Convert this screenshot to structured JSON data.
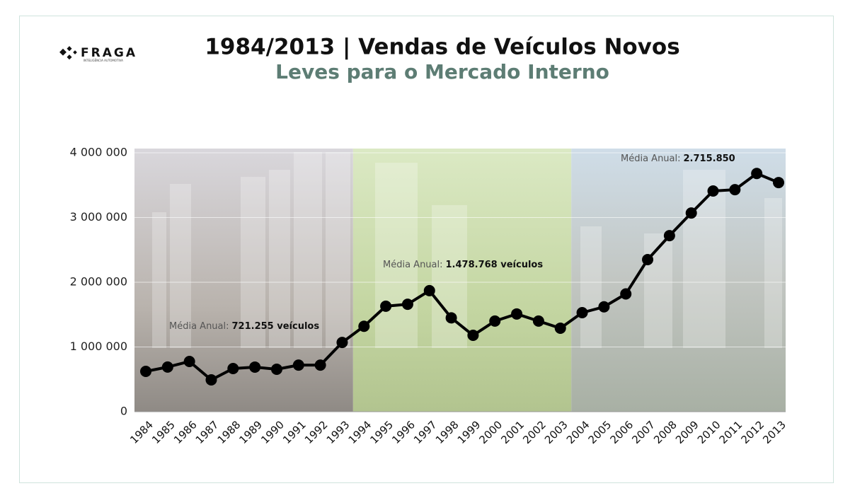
{
  "logo": {
    "name": "FRAGA",
    "tagline": "INTELIGÊNCIA AUTOMOTIVA"
  },
  "chart_data": {
    "type": "line",
    "title": "1984/2013 | Vendas de Veículos Novos",
    "subtitle": "Leves para o Mercado Interno",
    "categories": [
      "1984",
      "1985",
      "1986",
      "1987",
      "1988",
      "1989",
      "1990",
      "1991",
      "1992",
      "1993",
      "1994",
      "1995",
      "1996",
      "1997",
      "1998",
      "1999",
      "2000",
      "2001",
      "2002",
      "2003",
      "2004",
      "2005",
      "2006",
      "2007",
      "2008",
      "2009",
      "2010",
      "2011",
      "2012",
      "2013"
    ],
    "series": [
      {
        "name": "Vendas",
        "color": "#000000",
        "values": [
          623000,
          690000,
          776000,
          492000,
          667000,
          689000,
          656000,
          720000,
          720000,
          1070000,
          1320000,
          1630000,
          1660000,
          1870000,
          1450000,
          1180000,
          1400000,
          1510000,
          1400000,
          1290000,
          1530000,
          1620000,
          1820000,
          2350000,
          2720000,
          3070000,
          3410000,
          3430000,
          3680000,
          3540000
        ]
      }
    ],
    "ylim": [
      0,
      4000000
    ],
    "yticks": [
      0,
      {
        "value": 1000000,
        "label": "1 000 000"
      },
      {
        "value": 2000000,
        "label": "2 000 000"
      },
      {
        "value": 3000000,
        "label": "3 000 000"
      },
      {
        "value": 4000000,
        "label": "4 000 000"
      }
    ],
    "grid": true,
    "annotations": [
      {
        "label": "Média Anual:",
        "text": "721.255 veículos"
      },
      {
        "label": "Média Anual:",
        "text": "1.478.768 veículos"
      },
      {
        "label": "Média Anual:",
        "text": "2.715.850"
      }
    ]
  }
}
